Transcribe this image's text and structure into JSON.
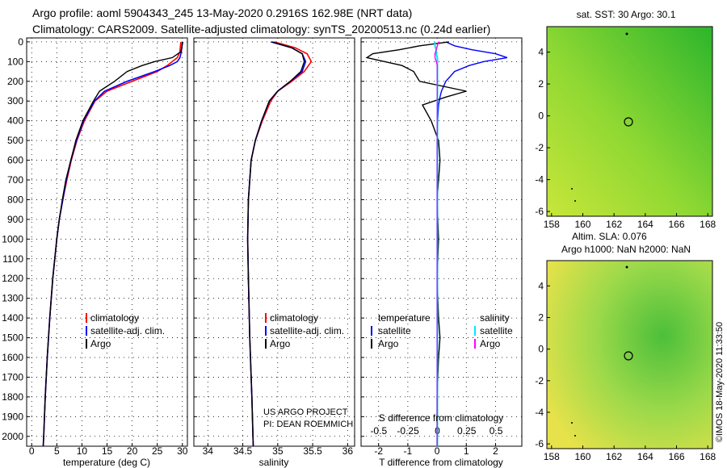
{
  "titles": {
    "line1": "Argo profile: aoml 5904343_245 13-May-2020 0.2916S 162.98E (NRT data)",
    "line2": "Climatology: CARS2009. Satellite-adjusted climatology: synTS_20200513.nc (0.24d earlier)"
  },
  "colors": {
    "clim": "#ff0000",
    "sat": "#0000ff",
    "argo": "#000000",
    "sat_s": "#00e5ff",
    "argo_s": "#ff00ff"
  },
  "depth_ticks": [
    "0",
    "100",
    "200",
    "300",
    "400",
    "500",
    "600",
    "700",
    "800",
    "900",
    "1000",
    "1100",
    "1200",
    "1300",
    "1400",
    "1500",
    "1600",
    "1700",
    "1800",
    "1900",
    "2000"
  ],
  "chart_data": [
    {
      "type": "line",
      "name": "temperature",
      "xlabel": "temperature (deg C)",
      "ylabel": "depth",
      "xlim": [
        -1,
        31
      ],
      "ylim": [
        2050,
        -20
      ],
      "xticks": [
        "0",
        "5",
        "10",
        "15",
        "20",
        "25",
        "30"
      ],
      "legend": [
        "climatology",
        "satellite-adj. clim.",
        "Argo"
      ],
      "depth": [
        0,
        50,
        80,
        100,
        120,
        150,
        200,
        250,
        300,
        400,
        500,
        600,
        700,
        800,
        900,
        1000,
        1200,
        1400,
        1600,
        1800,
        2000,
        2050
      ],
      "series": [
        {
          "name": "climatology",
          "values": [
            29.7,
            29.5,
            29.0,
            28.0,
            27.0,
            25.0,
            20.0,
            15.0,
            12.6,
            10.5,
            9.0,
            7.9,
            7.0,
            6.2,
            5.5,
            5.0,
            4.2,
            3.6,
            3.1,
            2.7,
            2.4,
            2.3
          ]
        },
        {
          "name": "satellite-adj. clim.",
          "values": [
            30.0,
            29.8,
            29.5,
            29.0,
            27.5,
            24.5,
            19.0,
            14.5,
            12.5,
            10.3,
            8.9,
            7.8,
            6.9,
            6.2,
            5.5,
            5.0,
            4.2,
            3.6,
            3.1,
            2.7,
            2.4,
            2.3
          ]
        },
        {
          "name": "Argo",
          "values": [
            30.1,
            29.7,
            28.0,
            24.5,
            22.0,
            19.0,
            16.5,
            13.5,
            12.3,
            10.2,
            8.8,
            7.8,
            6.8,
            6.1,
            5.5,
            5.0,
            4.2,
            3.6,
            3.1,
            2.7,
            2.4,
            2.3
          ]
        }
      ]
    },
    {
      "type": "line",
      "name": "salinity",
      "xlabel": "salinity",
      "xlim": [
        33.8,
        36.1
      ],
      "ylim": [
        2050,
        -20
      ],
      "xticks": [
        "34",
        "34.5",
        "35",
        "35.5",
        "36"
      ],
      "legend": [
        "climatology",
        "satellite-adj. clim.",
        "Argo"
      ],
      "annotation1": "US ARGO PROJECT",
      "annotation2": "PI: DEAN ROEMMICH",
      "depth": [
        0,
        30,
        60,
        100,
        150,
        200,
        250,
        300,
        400,
        500,
        600,
        800,
        1000,
        1200,
        1500,
        1800,
        2050
      ],
      "series": [
        {
          "name": "climatology",
          "values": [
            34.95,
            35.25,
            35.42,
            35.48,
            35.38,
            35.2,
            35.0,
            34.9,
            34.78,
            34.68,
            34.62,
            34.58,
            34.57,
            34.58,
            34.6,
            34.63,
            34.65
          ]
        },
        {
          "name": "satellite-adj. clim.",
          "values": [
            34.9,
            35.2,
            35.35,
            35.4,
            35.35,
            35.18,
            35.0,
            34.88,
            34.77,
            34.68,
            34.62,
            34.58,
            34.57,
            34.58,
            34.6,
            34.63,
            34.65
          ]
        },
        {
          "name": "Argo",
          "values": [
            34.92,
            35.2,
            35.35,
            35.38,
            35.33,
            35.18,
            35.0,
            34.88,
            34.77,
            34.68,
            34.62,
            34.58,
            34.57,
            34.58,
            34.6,
            34.63,
            34.65
          ]
        }
      ]
    },
    {
      "type": "line",
      "name": "difference",
      "xlabel": "T difference from climatology",
      "xlabel_top": "S difference from climatology",
      "xlim": [
        -2.6,
        2.9
      ],
      "ylim": [
        2050,
        -20
      ],
      "xticks": [
        "-2",
        "-1",
        "0",
        "1",
        "2"
      ],
      "xticks_s": [
        "-0.5",
        "-0.25",
        "0",
        "0.25",
        "0.5"
      ],
      "legend_t_title": "temperature",
      "legend_s_title": "salinity",
      "legend": [
        "satellite",
        "Argo"
      ],
      "depth": [
        0,
        20,
        40,
        60,
        80,
        100,
        120,
        150,
        200,
        250,
        280,
        320,
        400,
        500,
        600,
        800,
        1000,
        1200,
        1400,
        1500,
        1600,
        1800,
        2050
      ],
      "series": [
        {
          "name": "T satellite",
          "values": [
            0.3,
            0.6,
            1.2,
            2.0,
            2.4,
            1.6,
            1.1,
            0.6,
            0.3,
            0.15,
            0.1,
            0.05,
            0.02,
            0.0,
            0.0,
            0.0,
            0.0,
            0.0,
            0.0,
            0.0,
            0.0,
            0.0,
            0.0
          ]
        },
        {
          "name": "T Argo",
          "values": [
            0.4,
            -0.6,
            -1.3,
            -2.2,
            -2.4,
            -1.8,
            -1.2,
            -0.8,
            -0.6,
            1.0,
            0.3,
            -0.5,
            -0.2,
            0.05,
            0.1,
            0.0,
            0.05,
            0.0,
            0.05,
            0.1,
            0.05,
            0.0,
            0.0
          ]
        },
        {
          "name": "S satellite",
          "values": [
            -0.02,
            -0.02,
            -0.01,
            -0.01,
            0.0,
            0.0,
            0.0,
            0.0,
            0.0,
            0.0,
            0.0,
            0.0,
            0.0,
            0.0,
            0.0,
            0.0,
            0.0,
            0.0,
            0.0,
            0.0,
            0.0,
            0.0,
            0.0
          ]
        },
        {
          "name": "S Argo",
          "values": [
            0.01,
            0.0,
            -0.01,
            -0.02,
            -0.02,
            -0.01,
            0.0,
            0.0,
            0.0,
            0.0,
            0.0,
            0.0,
            0.0,
            0.0,
            0.0,
            0.0,
            0.0,
            0.0,
            0.0,
            0.0,
            0.0,
            0.0,
            0.0
          ]
        }
      ]
    },
    {
      "type": "heatmap",
      "name": "sst-map",
      "title": "sat. SST: 30 Argo: 30.1",
      "xticks": [
        "158",
        "160",
        "162",
        "164",
        "166",
        "168"
      ],
      "yticks": [
        "4",
        "2",
        "0",
        "-2",
        "-4",
        "-6"
      ],
      "marker": [
        162.98,
        -0.29
      ]
    },
    {
      "type": "heatmap",
      "name": "sla-map",
      "title1": "Altim. SLA: 0.076",
      "title2": "Argo h1000: NaN h2000: NaN",
      "xticks": [
        "158",
        "160",
        "162",
        "164",
        "166",
        "168"
      ],
      "yticks": [
        "4",
        "2",
        "0",
        "-2",
        "-4",
        "-6"
      ],
      "marker": [
        162.98,
        -0.29
      ]
    }
  ],
  "stamp": "©IMOS 18-May-2020 11:33:50"
}
